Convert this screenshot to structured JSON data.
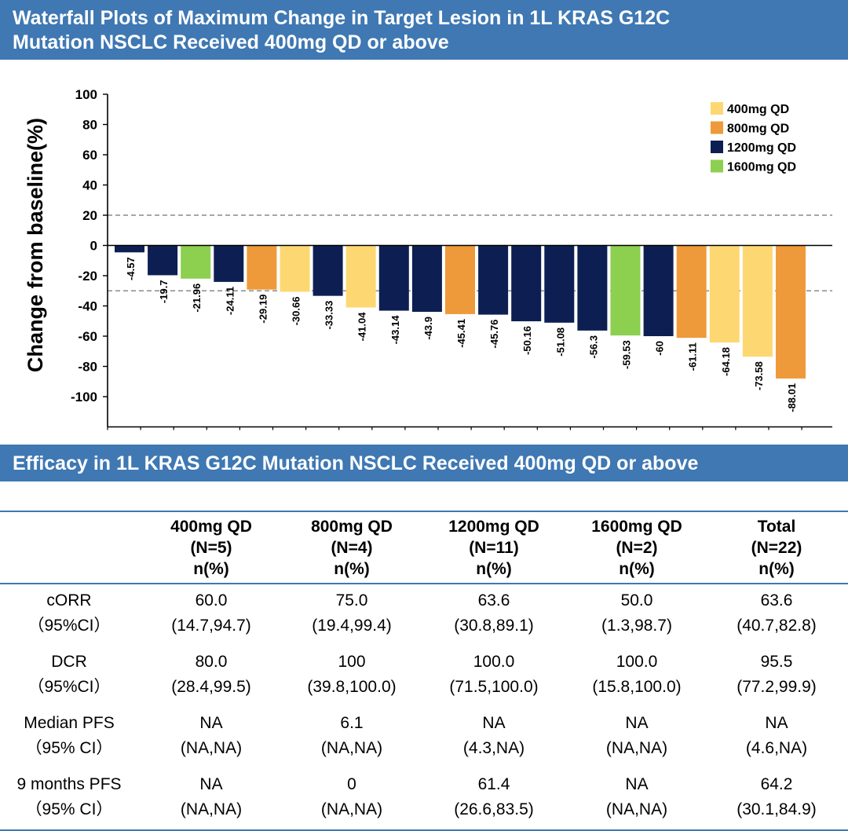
{
  "chart_title_line1": "Waterfall Plots of  Maximum Change in Target Lesion in 1L KRAS G12C",
  "chart_title_line2": "Mutation NSCLC Received 400mg QD or above",
  "table_title": "Efficacy in 1L KRAS G12C Mutation NSCLC Received 400mg QD or above",
  "chart_data": {
    "type": "bar",
    "ylabel": "Change from baseline(%)",
    "xlabel": "",
    "ylim": [
      -120,
      100
    ],
    "yticks": [
      100,
      80,
      60,
      40,
      20,
      0,
      -20,
      -40,
      -60,
      -80,
      -100
    ],
    "reference_lines": [
      20,
      -30
    ],
    "legend": [
      {
        "label": "400mg QD",
        "color": "#fdd872"
      },
      {
        "label": "800mg QD",
        "color": "#ee9a3a"
      },
      {
        "label": "1200mg QD",
        "color": "#0d1f52"
      },
      {
        "label": "1600mg QD",
        "color": "#8dcf4f"
      }
    ],
    "values": [
      -4.57,
      -19.7,
      -21.96,
      -24.11,
      -29.19,
      -30.66,
      -33.33,
      -41.04,
      -43.14,
      -43.9,
      -45.41,
      -45.76,
      -50.16,
      -51.08,
      -56.3,
      -59.53,
      -60,
      -61.11,
      -64.18,
      -73.58,
      -88.01
    ],
    "labels": [
      "-4.57",
      "-19.7",
      "-21.96",
      "-24.11",
      "-29.19",
      "-30.66",
      "-33.33",
      "-41.04",
      "-43.14",
      "-43.9",
      "-45.41",
      "-45.76",
      "-50.16",
      "-51.08",
      "-56.3",
      "-59.53",
      "-60",
      "-61.11",
      "-64.18",
      "-73.58",
      "-88.01"
    ],
    "dose": [
      2,
      2,
      3,
      2,
      1,
      0,
      2,
      0,
      2,
      2,
      1,
      2,
      2,
      2,
      2,
      3,
      2,
      1,
      0,
      0,
      1
    ]
  },
  "table": {
    "headers": [
      [],
      [
        "400mg QD",
        "(N=5)",
        "n(%)"
      ],
      [
        "800mg QD",
        "(N=4)",
        "n(%)"
      ],
      [
        "1200mg QD",
        "(N=11)",
        "n(%)"
      ],
      [
        "1600mg QD",
        "(N=2)",
        "n(%)"
      ],
      [
        "Total",
        "(N=22)",
        "n(%)"
      ]
    ],
    "rows": [
      [
        [
          "cORR",
          "（95%CI）"
        ],
        [
          "60.0",
          "(14.7,94.7)"
        ],
        [
          "75.0",
          "(19.4,99.4)"
        ],
        [
          "63.6",
          "(30.8,89.1)"
        ],
        [
          "50.0",
          "(1.3,98.7)"
        ],
        [
          "63.6",
          "(40.7,82.8)"
        ]
      ],
      [
        [
          "DCR",
          "（95%CI）"
        ],
        [
          "80.0",
          "(28.4,99.5)"
        ],
        [
          "100",
          "(39.8,100.0)"
        ],
        [
          "100.0",
          "(71.5,100.0)"
        ],
        [
          "100.0",
          "(15.8,100.0)"
        ],
        [
          "95.5",
          "(77.2,99.9)"
        ]
      ],
      [
        [
          "Median PFS",
          "（95% CI）"
        ],
        [
          "NA",
          "(NA,NA)"
        ],
        [
          "6.1",
          "(NA,NA)"
        ],
        [
          "NA",
          "(4.3,NA)"
        ],
        [
          "NA",
          "(NA,NA)"
        ],
        [
          "NA",
          "(4.6,NA)"
        ]
      ],
      [
        [
          "9 months PFS",
          "（95% CI）"
        ],
        [
          "NA",
          "(NA,NA)"
        ],
        [
          "0",
          "(NA,NA)"
        ],
        [
          "61.4",
          "(26.6,83.5)"
        ],
        [
          "NA",
          "(NA,NA)"
        ],
        [
          "64.2",
          "(30.1,84.9)"
        ]
      ]
    ]
  }
}
